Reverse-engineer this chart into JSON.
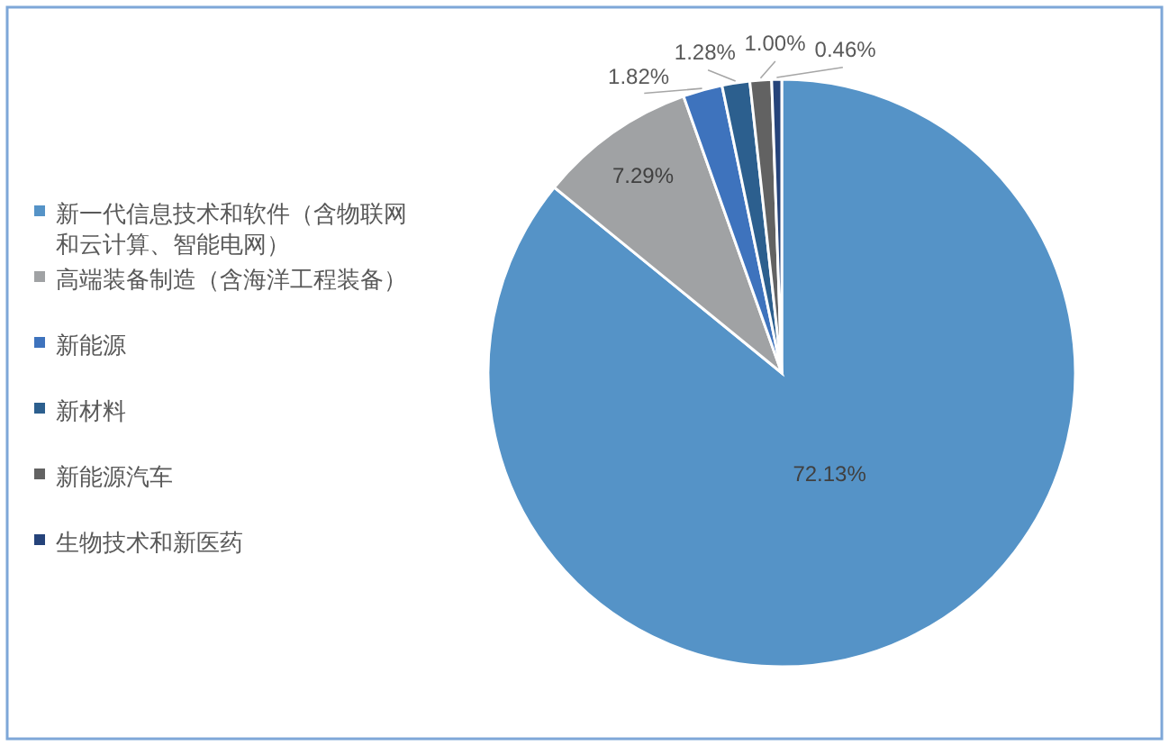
{
  "chart_data": {
    "type": "pie",
    "categories": [
      "新一代信息技术和软件（含物联网和云计算、智能电网）",
      "高端装备制造（含海洋工程装备）",
      "新能源",
      "新材料",
      "新能源汽车",
      "生物技术和新医药"
    ],
    "values": [
      72.13,
      7.29,
      1.82,
      1.28,
      1.0,
      0.46
    ],
    "value_labels": [
      "72.13%",
      "7.29%",
      "1.82%",
      "1.28%",
      "1.00%",
      "0.46%"
    ],
    "colors": [
      "#5593c7",
      "#a0a2a4",
      "#3e73bd",
      "#2c5f8e",
      "#626262",
      "#25437a"
    ],
    "legend": "left"
  }
}
